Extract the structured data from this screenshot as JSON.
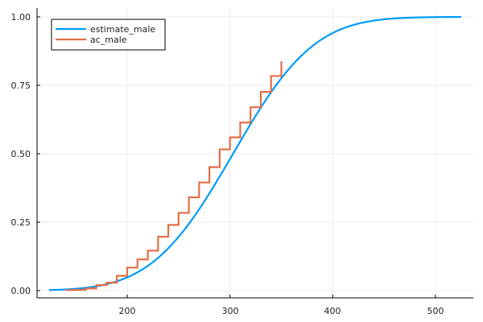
{
  "chart_data": {
    "type": "line",
    "title": "",
    "xlabel": "",
    "ylabel": "",
    "xlim": [
      112,
      536
    ],
    "ylim": [
      -0.03,
      1.03
    ],
    "xticks": [
      200,
      300,
      400,
      500
    ],
    "xtick_labels": [
      "200",
      "300",
      "400",
      "500"
    ],
    "yticks": [
      0.0,
      0.25,
      0.5,
      0.75,
      1.0
    ],
    "ytick_labels": [
      "0.00",
      "0.25",
      "0.50",
      "0.75",
      "1.00"
    ],
    "grid": true,
    "legend_position": "top-left",
    "series": [
      {
        "name": "estimate_male",
        "kind": "line",
        "color": "#009af9",
        "description": "Smooth normal CDF, approx mean 303, sd 62",
        "x": [
          124,
          140,
          160,
          180,
          200,
          220,
          240,
          260,
          280,
          300,
          320,
          340,
          360,
          380,
          400,
          420,
          440,
          460,
          480,
          500,
          525
        ],
        "y": [
          0.002,
          0.004,
          0.011,
          0.024,
          0.048,
          0.091,
          0.155,
          0.244,
          0.356,
          0.481,
          0.607,
          0.724,
          0.821,
          0.893,
          0.942,
          0.97,
          0.986,
          0.994,
          0.998,
          0.999,
          1.0
        ]
      },
      {
        "name": "ac_male",
        "kind": "steppost",
        "color": "#e26f46",
        "x": [
          140,
          150,
          160,
          170,
          180,
          190,
          200,
          210,
          220,
          230,
          240,
          250,
          260,
          270,
          280,
          290,
          300,
          310,
          320,
          330,
          340,
          350
        ],
        "y": [
          0.002,
          0.003,
          0.008,
          0.02,
          0.029,
          0.054,
          0.084,
          0.114,
          0.146,
          0.197,
          0.24,
          0.284,
          0.341,
          0.395,
          0.451,
          0.516,
          0.56,
          0.614,
          0.67,
          0.726,
          0.784,
          0.838
        ]
      }
    ]
  },
  "legend": {
    "items": [
      {
        "label": "estimate_male",
        "color": "#009af9"
      },
      {
        "label": "ac_male",
        "color": "#e26f46"
      }
    ]
  },
  "axes": {
    "x_tick_labels": [
      "200",
      "300",
      "400",
      "500"
    ],
    "y_tick_labels": [
      "0.00",
      "0.25",
      "0.50",
      "0.75",
      "1.00"
    ]
  }
}
